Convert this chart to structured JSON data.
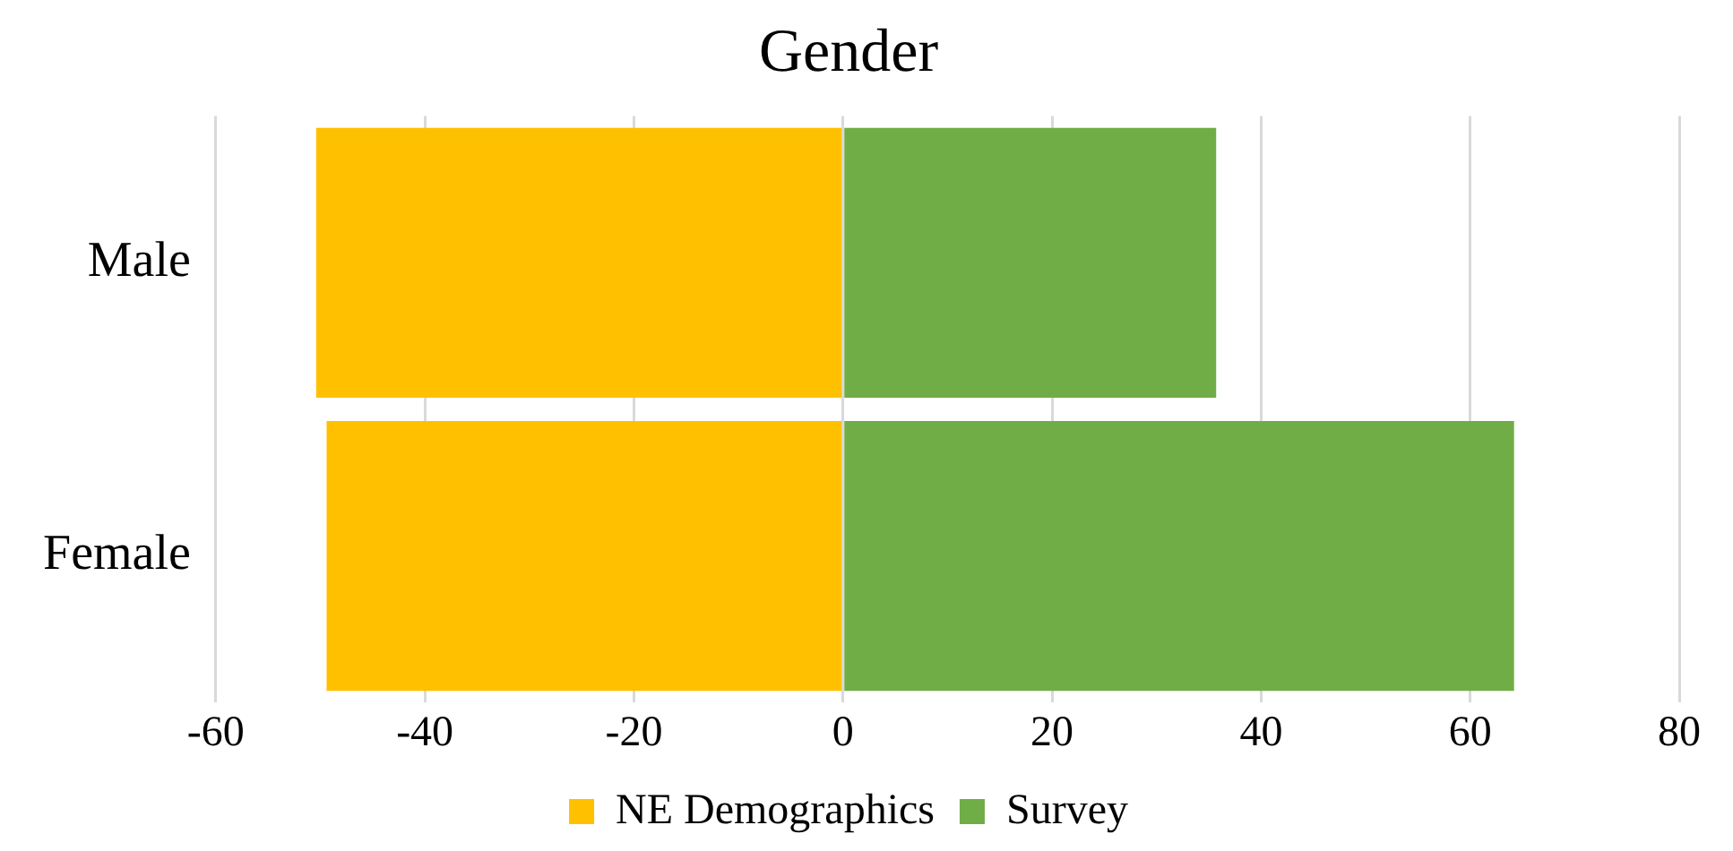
{
  "chart_data": {
    "type": "bar",
    "title": "Gender",
    "orientation": "horizontal",
    "stacked": true,
    "categories": [
      "Male",
      "Female"
    ],
    "series": [
      {
        "name": "NE Demographics",
        "color": "#ffc000",
        "values": [
          -50.4,
          -49.4
        ]
      },
      {
        "name": "Survey",
        "color": "#70ad47",
        "values": [
          35.7,
          64.2
        ]
      }
    ],
    "xlim": [
      -60,
      80
    ],
    "xticks": [
      -60,
      -40,
      -20,
      0,
      20,
      40,
      60,
      80
    ],
    "grid": "x",
    "legend": "bottom"
  }
}
